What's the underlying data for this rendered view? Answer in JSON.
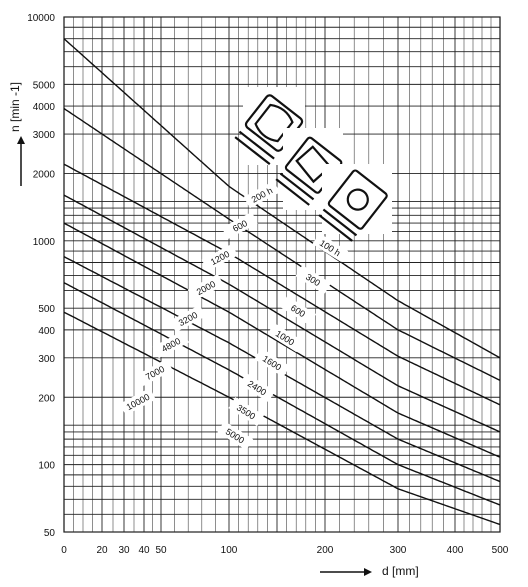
{
  "chart_data": {
    "type": "line",
    "title": "",
    "xlabel": "d [mm]",
    "ylabel": "n [min -1]",
    "x_scale": "custom (d-dependent)",
    "y_scale": "log",
    "xlim": [
      0,
      500
    ],
    "ylim": [
      50,
      10000
    ],
    "x_ticks": [
      {
        "value": 0,
        "label": "0"
      },
      {
        "value": 20,
        "label": "20"
      },
      {
        "value": 30,
        "label": "30"
      },
      {
        "value": 40,
        "label": "40"
      },
      {
        "value": 50,
        "label": "50"
      },
      {
        "value": 100,
        "label": "100"
      },
      {
        "value": 200,
        "label": "200"
      },
      {
        "value": 300,
        "label": "300"
      },
      {
        "value": 400,
        "label": "400"
      },
      {
        "value": 500,
        "label": "500"
      }
    ],
    "y_ticks": [
      {
        "value": 10000,
        "label": "10000"
      },
      {
        "value": 5000,
        "label": "5000"
      },
      {
        "value": 4000,
        "label": "4000"
      },
      {
        "value": 3000,
        "label": "3000"
      },
      {
        "value": 2000,
        "label": "2000"
      },
      {
        "value": 1000,
        "label": "1000"
      },
      {
        "value": 500,
        "label": "500"
      },
      {
        "value": 400,
        "label": "400"
      },
      {
        "value": 300,
        "label": "300"
      },
      {
        "value": 200,
        "label": "200"
      },
      {
        "value": 100,
        "label": "100"
      },
      {
        "value": 50,
        "label": "50"
      }
    ],
    "grid": true,
    "legend": "none",
    "series": [
      {
        "values": [
          [
            0,
            8000
          ],
          [
            100,
            1750
          ],
          [
            300,
            540
          ],
          [
            500,
            300
          ]
        ]
      },
      {
        "values": [
          [
            0,
            3900
          ],
          [
            100,
            1250
          ],
          [
            300,
            400
          ],
          [
            500,
            238
          ]
        ]
      },
      {
        "values": [
          [
            0,
            2200
          ],
          [
            100,
            880
          ],
          [
            300,
            305
          ],
          [
            500,
            185
          ]
        ]
      },
      {
        "values": [
          [
            0,
            1600
          ],
          [
            100,
            640
          ],
          [
            300,
            225
          ],
          [
            500,
            140
          ]
        ]
      },
      {
        "values": [
          [
            0,
            1200
          ],
          [
            100,
            480
          ],
          [
            300,
            170
          ],
          [
            500,
            108
          ]
        ]
      },
      {
        "values": [
          [
            0,
            850
          ],
          [
            100,
            350
          ],
          [
            300,
            130
          ],
          [
            500,
            84
          ]
        ]
      },
      {
        "values": [
          [
            0,
            650
          ],
          [
            100,
            265
          ],
          [
            300,
            100
          ],
          [
            500,
            66
          ]
        ]
      },
      {
        "values": [
          [
            0,
            480
          ],
          [
            100,
            200
          ],
          [
            300,
            78
          ],
          [
            500,
            54
          ]
        ]
      }
    ],
    "annotation_groups": [
      {
        "labels": [
          "200 h",
          "600",
          "1200",
          "2000",
          "3200",
          "4800",
          "7000",
          "10000"
        ]
      },
      {
        "labels": [
          "100 h",
          "300",
          "600",
          "1000",
          "1600",
          "2400",
          "3500",
          "5000"
        ]
      }
    ]
  }
}
